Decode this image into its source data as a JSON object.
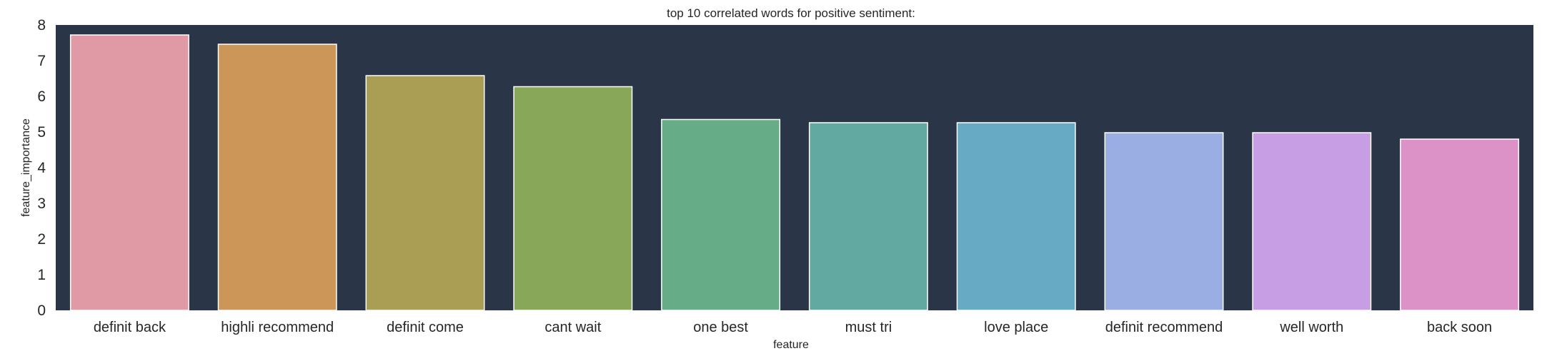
{
  "chart_data": {
    "type": "bar",
    "title": "top 10 correlated words for positive sentiment:",
    "xlabel": "feature",
    "ylabel": "feature_importance",
    "categories": [
      "definit back",
      "highli recommend",
      "definit come",
      "cant wait",
      "one best",
      "must tri",
      "love place",
      "definit recommend",
      "well worth",
      "back soon"
    ],
    "values": [
      7.72,
      7.46,
      6.58,
      6.27,
      5.35,
      5.26,
      5.26,
      4.98,
      4.98,
      4.8
    ],
    "colors": [
      "#e09aa5",
      "#cd9659",
      "#a99e54",
      "#88a759",
      "#66ac86",
      "#62a9a1",
      "#66abc3",
      "#9aaee4",
      "#c79ee4",
      "#dd92c7"
    ],
    "background": "#2b3548",
    "ylim": [
      0,
      8
    ],
    "yticks": [
      "0",
      "1",
      "2",
      "3",
      "4",
      "5",
      "6",
      "7",
      "8"
    ],
    "grid": false,
    "legend": "none"
  }
}
